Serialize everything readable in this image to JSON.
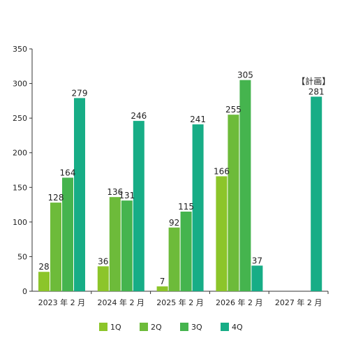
{
  "chart_data": {
    "type": "bar",
    "title": "",
    "xlabel": "",
    "ylabel": "",
    "ylim": [
      0,
      350
    ],
    "yticks": [
      0,
      50,
      100,
      150,
      200,
      250,
      300,
      350
    ],
    "grid": false,
    "legend_position": "bottom",
    "categories": [
      "2023 年 2 月",
      "2024 年 2 月",
      "2025 年 2 月",
      "2026 年 2 月",
      "2027 年 2 月"
    ],
    "series": [
      {
        "name": "1Q",
        "color": "#8cc52a",
        "values": [
          28,
          36,
          7,
          166,
          null
        ]
      },
      {
        "name": "2Q",
        "color": "#6dbb3a",
        "values": [
          128,
          136,
          92,
          255,
          null
        ]
      },
      {
        "name": "3Q",
        "color": "#45b44e",
        "values": [
          164,
          131,
          115,
          305,
          null
        ]
      },
      {
        "name": "4Q",
        "color": "#17ad86",
        "values": [
          279,
          246,
          241,
          37,
          281
        ]
      }
    ],
    "annotations": [
      {
        "text": "【計画】",
        "category_index": 4,
        "series_index": 3
      }
    ]
  }
}
